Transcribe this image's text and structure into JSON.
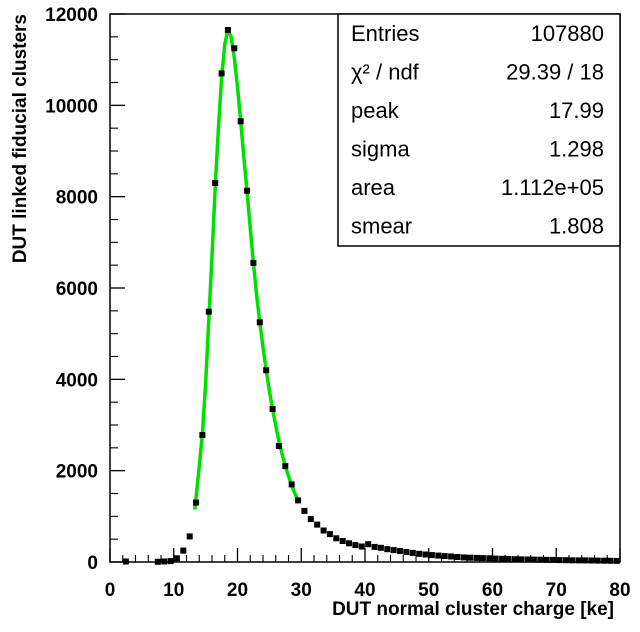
{
  "chart_data": {
    "type": "scatter",
    "xlabel": "DUT normal cluster charge [ke]",
    "ylabel": "DUT linked fiducial clusters",
    "xlim": [
      0,
      80
    ],
    "ylim": [
      0,
      12000
    ],
    "x_ticks": [
      0,
      10,
      20,
      30,
      40,
      50,
      60,
      70,
      80
    ],
    "y_ticks": [
      0,
      2000,
      4000,
      6000,
      8000,
      10000,
      12000
    ],
    "x_tick_labels": [
      "0",
      "10",
      "20",
      "30",
      "40",
      "50",
      "60",
      "70",
      "80"
    ],
    "y_tick_labels": [
      "0",
      "2000",
      "4000",
      "6000",
      "8000",
      "10000",
      "12000"
    ],
    "grid": false,
    "series": [
      {
        "color": "#000000",
        "marker": "square",
        "points": [
          [
            2.5,
            10
          ],
          [
            7.5,
            5
          ],
          [
            8.5,
            10
          ],
          [
            9.5,
            20
          ],
          [
            10.5,
            80
          ],
          [
            11.5,
            250
          ],
          [
            12.5,
            560
          ],
          [
            13.5,
            1300
          ],
          [
            14.5,
            2780
          ],
          [
            15.5,
            5480
          ],
          [
            16.5,
            8300
          ],
          [
            17.5,
            10700
          ],
          [
            18.5,
            11650
          ],
          [
            19.5,
            11250
          ],
          [
            20.5,
            9650
          ],
          [
            21.5,
            8130
          ],
          [
            22.5,
            6550
          ],
          [
            23.5,
            5250
          ],
          [
            24.5,
            4200
          ],
          [
            25.5,
            3350
          ],
          [
            26.5,
            2540
          ],
          [
            27.5,
            2100
          ],
          [
            28.5,
            1700
          ],
          [
            29.5,
            1350
          ],
          [
            30.5,
            1120
          ],
          [
            31.5,
            940
          ],
          [
            32.5,
            820
          ],
          [
            33.5,
            690
          ],
          [
            34.5,
            610
          ],
          [
            35.5,
            520
          ],
          [
            36.5,
            460
          ],
          [
            37.5,
            410
          ],
          [
            38.5,
            370
          ],
          [
            39.5,
            340
          ],
          [
            40.5,
            390
          ],
          [
            41.5,
            330
          ],
          [
            42.5,
            310
          ],
          [
            43.5,
            280
          ],
          [
            44.5,
            260
          ],
          [
            45.5,
            240
          ],
          [
            46.5,
            220
          ],
          [
            47.5,
            200
          ],
          [
            48.5,
            180
          ],
          [
            49.5,
            165
          ],
          [
            50.5,
            150
          ],
          [
            51.5,
            140
          ],
          [
            52.5,
            130
          ],
          [
            53.5,
            120
          ],
          [
            54.5,
            110
          ],
          [
            55.5,
            100
          ],
          [
            56.5,
            95
          ],
          [
            57.5,
            90
          ],
          [
            58.5,
            85
          ],
          [
            59.5,
            80
          ],
          [
            60.5,
            75
          ],
          [
            61.5,
            70
          ],
          [
            62.5,
            65
          ],
          [
            63.5,
            62
          ],
          [
            64.5,
            58
          ],
          [
            65.5,
            55
          ],
          [
            66.5,
            52
          ],
          [
            67.5,
            50
          ],
          [
            68.5,
            47
          ],
          [
            69.5,
            45
          ],
          [
            70.5,
            42
          ],
          [
            71.5,
            40
          ],
          [
            72.5,
            38
          ],
          [
            73.5,
            36
          ],
          [
            74.5,
            34
          ],
          [
            75.5,
            32
          ],
          [
            76.5,
            30
          ],
          [
            77.5,
            28
          ],
          [
            78.5,
            26
          ],
          [
            79.5,
            24
          ]
        ]
      },
      {
        "color": "#00e000",
        "type": "line",
        "points": [
          [
            13.3,
            1150
          ],
          [
            14.0,
            2100
          ],
          [
            14.5,
            2800
          ],
          [
            15.0,
            3900
          ],
          [
            15.5,
            5300
          ],
          [
            16.0,
            6700
          ],
          [
            16.5,
            8200
          ],
          [
            17.0,
            9500
          ],
          [
            17.5,
            10600
          ],
          [
            18.0,
            11350
          ],
          [
            18.5,
            11650
          ],
          [
            19.0,
            11500
          ],
          [
            19.5,
            11050
          ],
          [
            20.0,
            10400
          ],
          [
            20.5,
            9650
          ],
          [
            21.0,
            8850
          ],
          [
            21.5,
            8100
          ],
          [
            22.0,
            7300
          ],
          [
            22.5,
            6550
          ],
          [
            23.0,
            5850
          ],
          [
            23.5,
            5250
          ],
          [
            24.0,
            4700
          ],
          [
            24.5,
            4200
          ],
          [
            25.0,
            3750
          ],
          [
            25.5,
            3350
          ],
          [
            26.0,
            2980
          ],
          [
            26.5,
            2650
          ],
          [
            27.0,
            2360
          ],
          [
            27.5,
            2100
          ],
          [
            28.0,
            1880
          ],
          [
            28.5,
            1680
          ],
          [
            29.0,
            1500
          ],
          [
            29.5,
            1350
          ]
        ]
      }
    ],
    "stats_box": [
      {
        "label": "Entries",
        "value": "107880"
      },
      {
        "label": "χ² / ndf",
        "value": "29.39 / 18"
      },
      {
        "label": "peak",
        "value": "17.99"
      },
      {
        "label": "sigma",
        "value": "1.298"
      },
      {
        "label": "area",
        "value": "1.112e+05"
      },
      {
        "label": "smear",
        "value": "1.808"
      }
    ]
  }
}
